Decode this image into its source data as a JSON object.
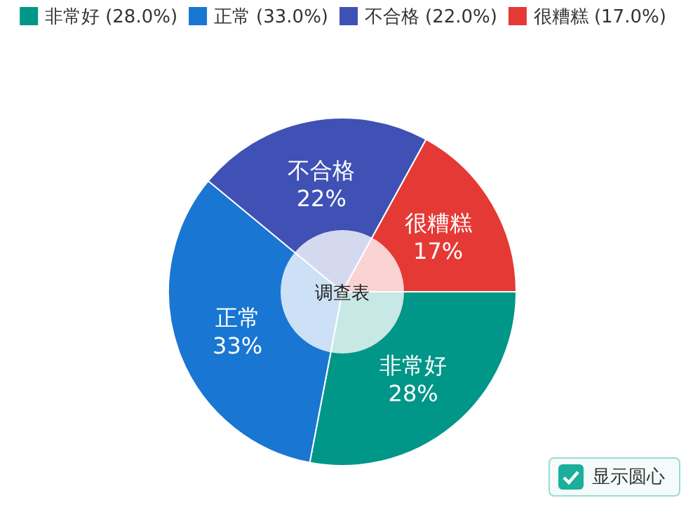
{
  "chart_data": {
    "type": "donut",
    "title": "调查表",
    "categories": [
      "非常好",
      "正常",
      "不合格",
      "很糟糕"
    ],
    "values": [
      28,
      33,
      22,
      17
    ],
    "value_labels": [
      "28%",
      "33%",
      "22%",
      "17%"
    ],
    "colors": [
      "#009688",
      "#1976d2",
      "#3f51b5",
      "#e53935"
    ],
    "legend": "top",
    "annotations": [
      "显示圆心",
      "(28.0%)",
      "(33.0%)",
      "(22.0%)",
      "(17.0%)"
    ]
  }
}
